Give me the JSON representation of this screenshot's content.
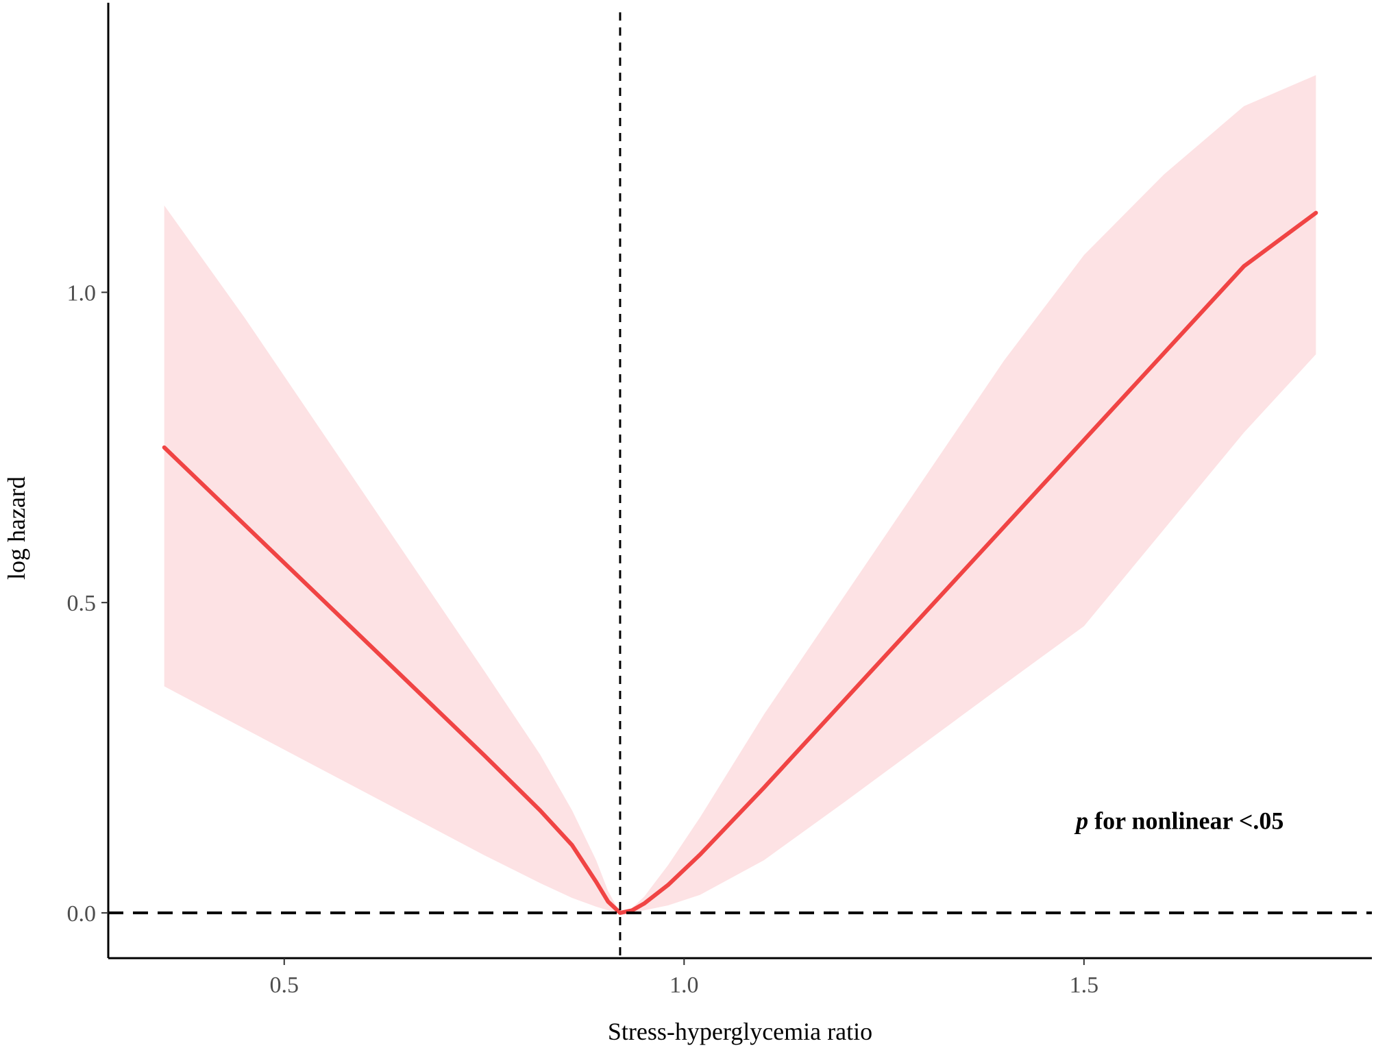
{
  "chart_data": {
    "type": "line",
    "title": "",
    "xlabel": "Stress-hyperglycemia ratio",
    "ylabel": "log hazard",
    "xlim": [
      0.28,
      1.86
    ],
    "ylim": [
      -0.073,
      1.46
    ],
    "x_ticks": [
      0.5,
      1.0,
      1.5
    ],
    "x_tick_labels": [
      "0.5",
      "1.0",
      "1.5"
    ],
    "y_ticks": [
      0.0,
      0.5,
      1.0
    ],
    "y_tick_labels": [
      "0.0",
      "0.5",
      "1.0"
    ],
    "grid": false,
    "reference_lines": {
      "vertical_x": 0.92,
      "horizontal_y": 0.0
    },
    "annotation": {
      "p_symbol": "p",
      "text": " for nonlinear <.05",
      "x": 1.49,
      "y": 0.135
    },
    "series": [
      {
        "x": [
          0.35,
          0.45,
          0.55,
          0.65,
          0.75,
          0.82,
          0.86,
          0.89,
          0.905,
          0.92,
          0.935,
          0.95,
          0.98,
          1.02,
          1.1,
          1.2,
          1.3,
          1.4,
          1.5,
          1.6,
          1.7,
          1.79
        ],
        "y": [
          0.75,
          0.626,
          0.502,
          0.378,
          0.254,
          0.165,
          0.109,
          0.05,
          0.018,
          0.0,
          0.004,
          0.015,
          0.045,
          0.094,
          0.202,
          0.342,
          0.482,
          0.622,
          0.762,
          0.902,
          1.042,
          1.128
        ],
        "lower": [
          0.365,
          0.297,
          0.229,
          0.161,
          0.093,
          0.048,
          0.024,
          0.01,
          0.004,
          0.0,
          0.001,
          0.004,
          0.012,
          0.029,
          0.085,
          0.178,
          0.273,
          0.368,
          0.462,
          0.618,
          0.774,
          0.9
        ],
        "upper": [
          1.14,
          0.96,
          0.77,
          0.58,
          0.39,
          0.255,
          0.165,
          0.085,
          0.035,
          0.0,
          0.008,
          0.026,
          0.077,
          0.154,
          0.32,
          0.51,
          0.7,
          0.89,
          1.06,
          1.19,
          1.3,
          1.35
        ]
      }
    ],
    "colors": {
      "line": "#f04444",
      "band": "#fde2e4",
      "reference": "#000000",
      "axis": "#000000"
    }
  }
}
